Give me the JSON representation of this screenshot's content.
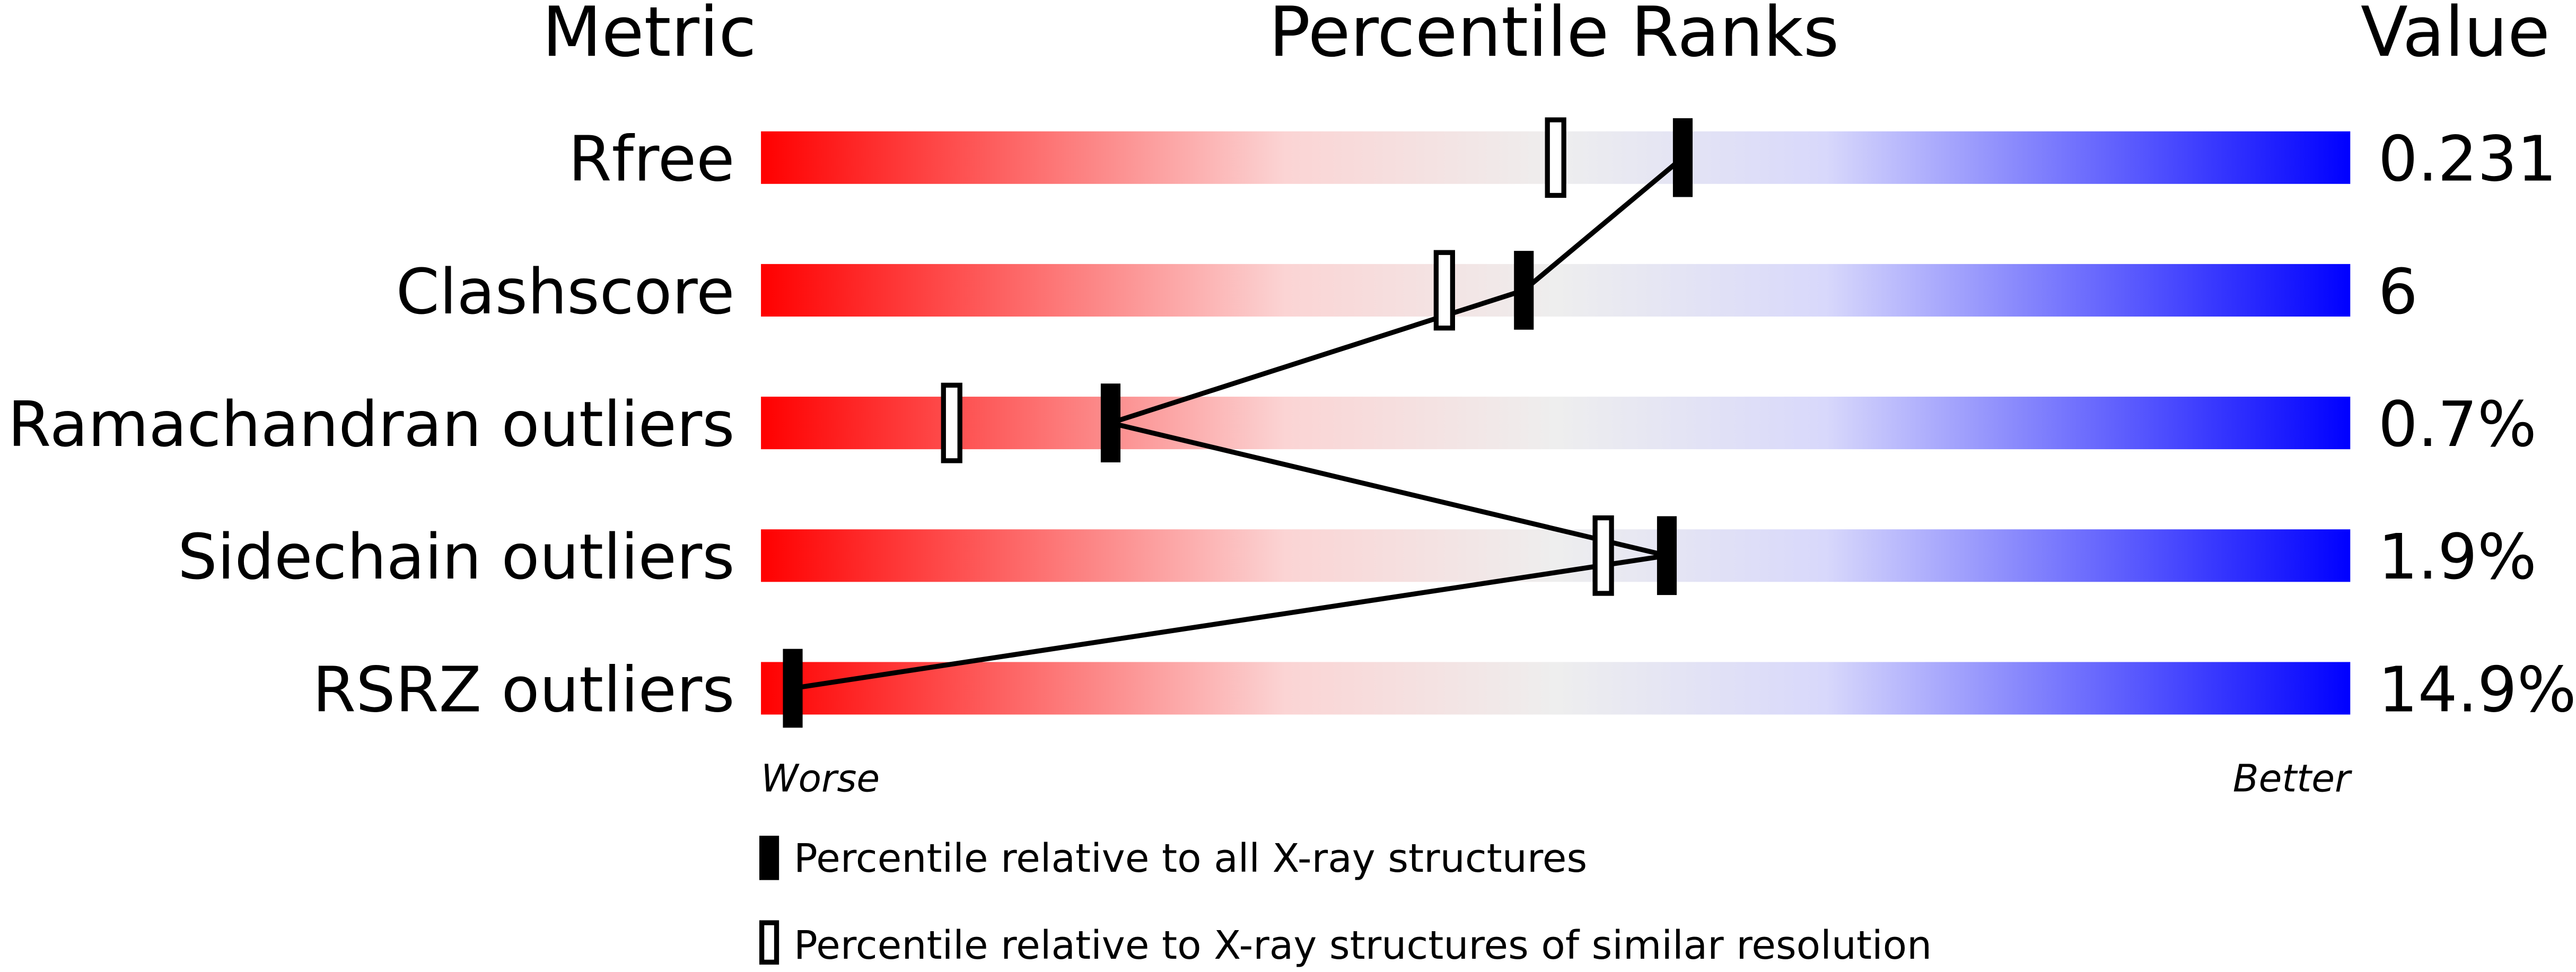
{
  "chart_data": {
    "type": "slider",
    "column_headers": [
      "Metric",
      "Percentile Ranks",
      "Value"
    ],
    "categories": [
      "Rfree",
      "Clashscore",
      "Ramachandran outliers",
      "Sidechain outliers",
      "RSRZ outliers"
    ],
    "metric_values": [
      "0.231",
      "6",
      "0.7%",
      "1.9%",
      "14.9%"
    ],
    "series": [
      {
        "name": "Percentile relative to all X-ray structures",
        "color": "#000000",
        "values": [
          58,
          48,
          22,
          57,
          2
        ]
      },
      {
        "name": "Percentile relative to X-ray structures of similar resolution",
        "color": "#ffffff",
        "values": [
          50,
          43,
          12,
          53,
          null
        ]
      }
    ],
    "xlim": [
      0,
      100
    ],
    "axis_labels": [
      "Worse",
      "Better"
    ]
  }
}
